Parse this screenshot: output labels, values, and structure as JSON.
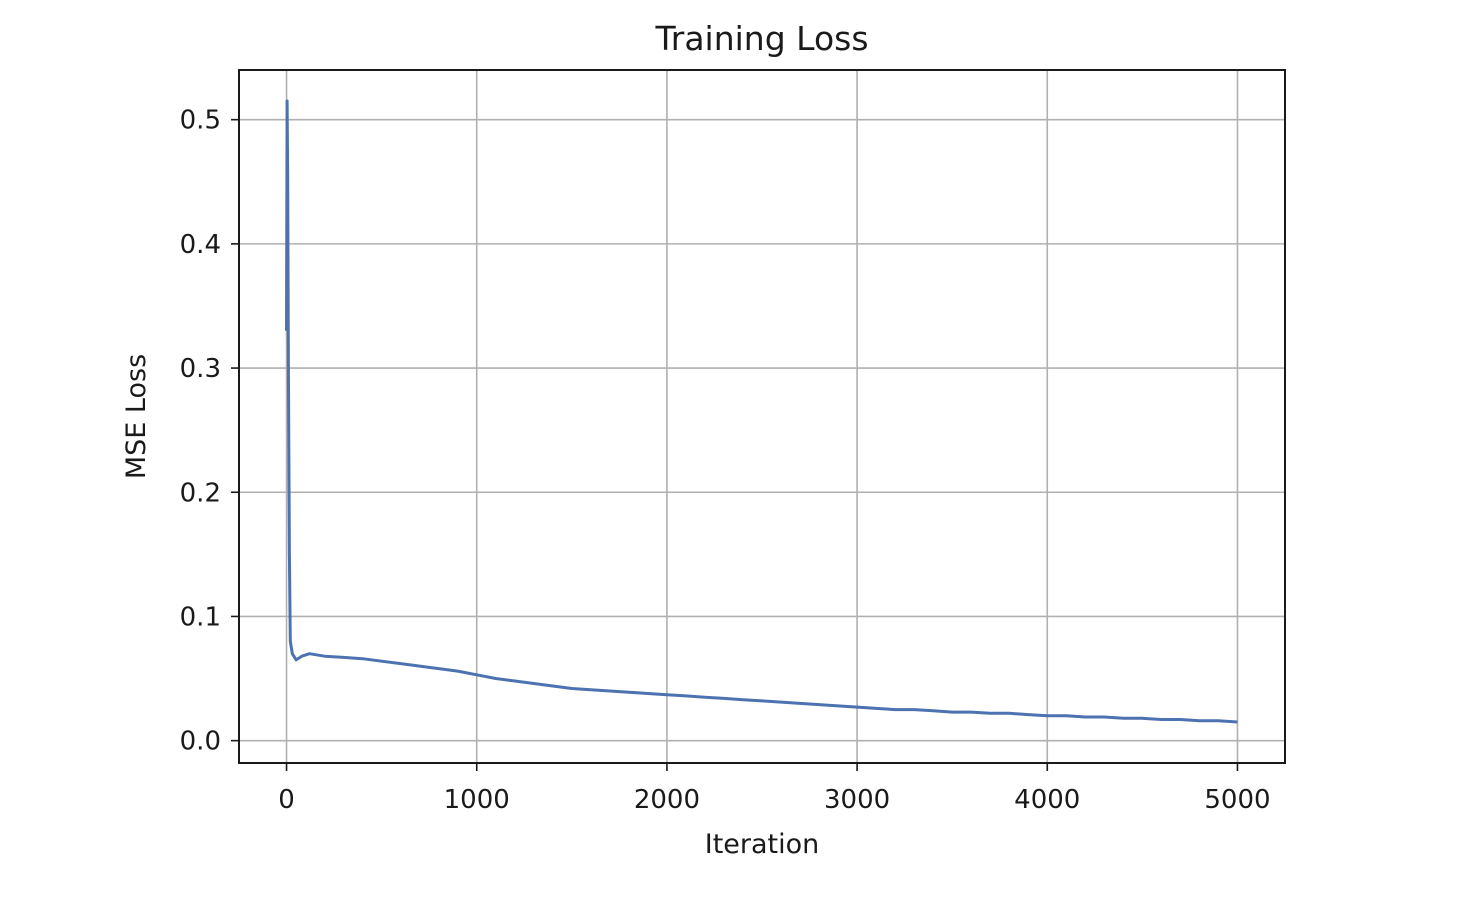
{
  "chart_data": {
    "type": "line",
    "title": "Training Loss",
    "xlabel": "Iteration",
    "ylabel": "MSE Loss",
    "xlim": [
      -250,
      5250
    ],
    "ylim": [
      -0.018,
      0.54
    ],
    "xticks": [
      0,
      1000,
      2000,
      3000,
      4000,
      5000
    ],
    "xtick_labels": [
      "0",
      "1000",
      "2000",
      "3000",
      "4000",
      "5000"
    ],
    "yticks": [
      0.0,
      0.1,
      0.2,
      0.3,
      0.4,
      0.5
    ],
    "ytick_labels": [
      "0.0",
      "0.1",
      "0.2",
      "0.3",
      "0.4",
      "0.5"
    ],
    "grid": true,
    "series": [
      {
        "color": "#4c72b0",
        "x": [
          0,
          3,
          6,
          10,
          15,
          20,
          30,
          50,
          80,
          120,
          200,
          300,
          400,
          500,
          600,
          700,
          800,
          900,
          1000,
          1100,
          1200,
          1300,
          1400,
          1500,
          1600,
          1700,
          1800,
          1900,
          2000,
          2100,
          2200,
          2300,
          2400,
          2500,
          2600,
          2700,
          2800,
          2900,
          3000,
          3100,
          3200,
          3300,
          3400,
          3500,
          3600,
          3700,
          3800,
          3900,
          4000,
          4100,
          4200,
          4300,
          4400,
          4500,
          4600,
          4700,
          4800,
          4900,
          5000
        ],
        "y": [
          0.33,
          0.515,
          0.45,
          0.3,
          0.15,
          0.08,
          0.07,
          0.065,
          0.068,
          0.07,
          0.068,
          0.067,
          0.066,
          0.064,
          0.062,
          0.06,
          0.058,
          0.056,
          0.053,
          0.05,
          0.048,
          0.046,
          0.044,
          0.042,
          0.041,
          0.04,
          0.039,
          0.038,
          0.037,
          0.036,
          0.035,
          0.034,
          0.033,
          0.032,
          0.031,
          0.03,
          0.029,
          0.028,
          0.027,
          0.026,
          0.025,
          0.025,
          0.024,
          0.023,
          0.023,
          0.022,
          0.022,
          0.021,
          0.02,
          0.02,
          0.019,
          0.019,
          0.018,
          0.018,
          0.017,
          0.017,
          0.016,
          0.016,
          0.015
        ]
      }
    ]
  }
}
